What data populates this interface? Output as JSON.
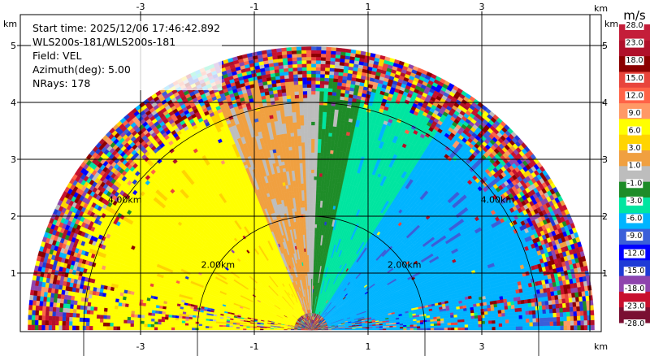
{
  "info": {
    "start_time": "Start time: 2025/12/06 17:46:42.892",
    "instrument": "WLS200s-181/WLS200s-181",
    "field": "Field: VEL",
    "azimuth": "Azimuth(deg): 5.00",
    "nrays": "NRays: 178"
  },
  "chart_data": {
    "type": "heatmap",
    "title": "",
    "field": "VEL",
    "azimuth_deg": 5.0,
    "nrays": 178,
    "start_time": "2025/12/06 17:46:42.892",
    "instrument": "WLS200s-181/WLS200s-181",
    "x_axis": {
      "unit": "km",
      "range": [
        -4.9,
        4.9
      ],
      "ticks": [
        -3,
        -1,
        1,
        3
      ]
    },
    "y_axis": {
      "unit": "km",
      "range": [
        0,
        5.6
      ],
      "ticks": [
        1,
        2,
        3,
        4,
        5
      ]
    },
    "max_range_km": 5.0,
    "range_rings": [
      {
        "radius_km": 2.0,
        "label": "2.00km",
        "label_side": "both"
      },
      {
        "radius_km": 4.0,
        "label": "4.00km",
        "label_side": "both"
      }
    ],
    "grid": true,
    "colorbar": {
      "unit": "m/s",
      "tick_labels": [
        "-28.0",
        "-23.0",
        "-18.0",
        "-15.0",
        "-12.0",
        "-9.0",
        "-6.0",
        "-3.0",
        "-1.0",
        "1.0",
        "3.0",
        "6.0",
        "9.0",
        "12.0",
        "15.0",
        "18.0",
        "23.0",
        "28.0"
      ],
      "colors": [
        "#7a0f32",
        "#c8102e",
        "#8e44ad",
        "#1f3bd6",
        "#0000ff",
        "#3a5fd9",
        "#00b4ff",
        "#00e5a0",
        "#1e8c28",
        "#bdbdbd",
        "#f0a040",
        "#ffd400",
        "#ffff00",
        "#ff9966",
        "#ff6347",
        "#e8453c",
        "#8b0000",
        "#b0102a",
        "#c41e3a"
      ]
    },
    "velocity_regions_deg": [
      {
        "from_deg": 180,
        "to_deg": 112,
        "value": 7.0,
        "desc": "left sector, positive (yellow)"
      },
      {
        "from_deg": 112,
        "to_deg": 92,
        "value": 1.5,
        "desc": "orange band"
      },
      {
        "from_deg": 92,
        "to_deg": 88,
        "value": 0.0,
        "desc": "near zero (gray)"
      },
      {
        "from_deg": 88,
        "to_deg": 78,
        "value": -2.0,
        "desc": "green band"
      },
      {
        "from_deg": 78,
        "to_deg": 58,
        "value": -5.0,
        "desc": "cyan-green"
      },
      {
        "from_deg": 58,
        "to_deg": 0,
        "value": -8.0,
        "desc": "right sector, negative (light blue)"
      }
    ],
    "noisy_beyond_km": 4.3
  }
}
